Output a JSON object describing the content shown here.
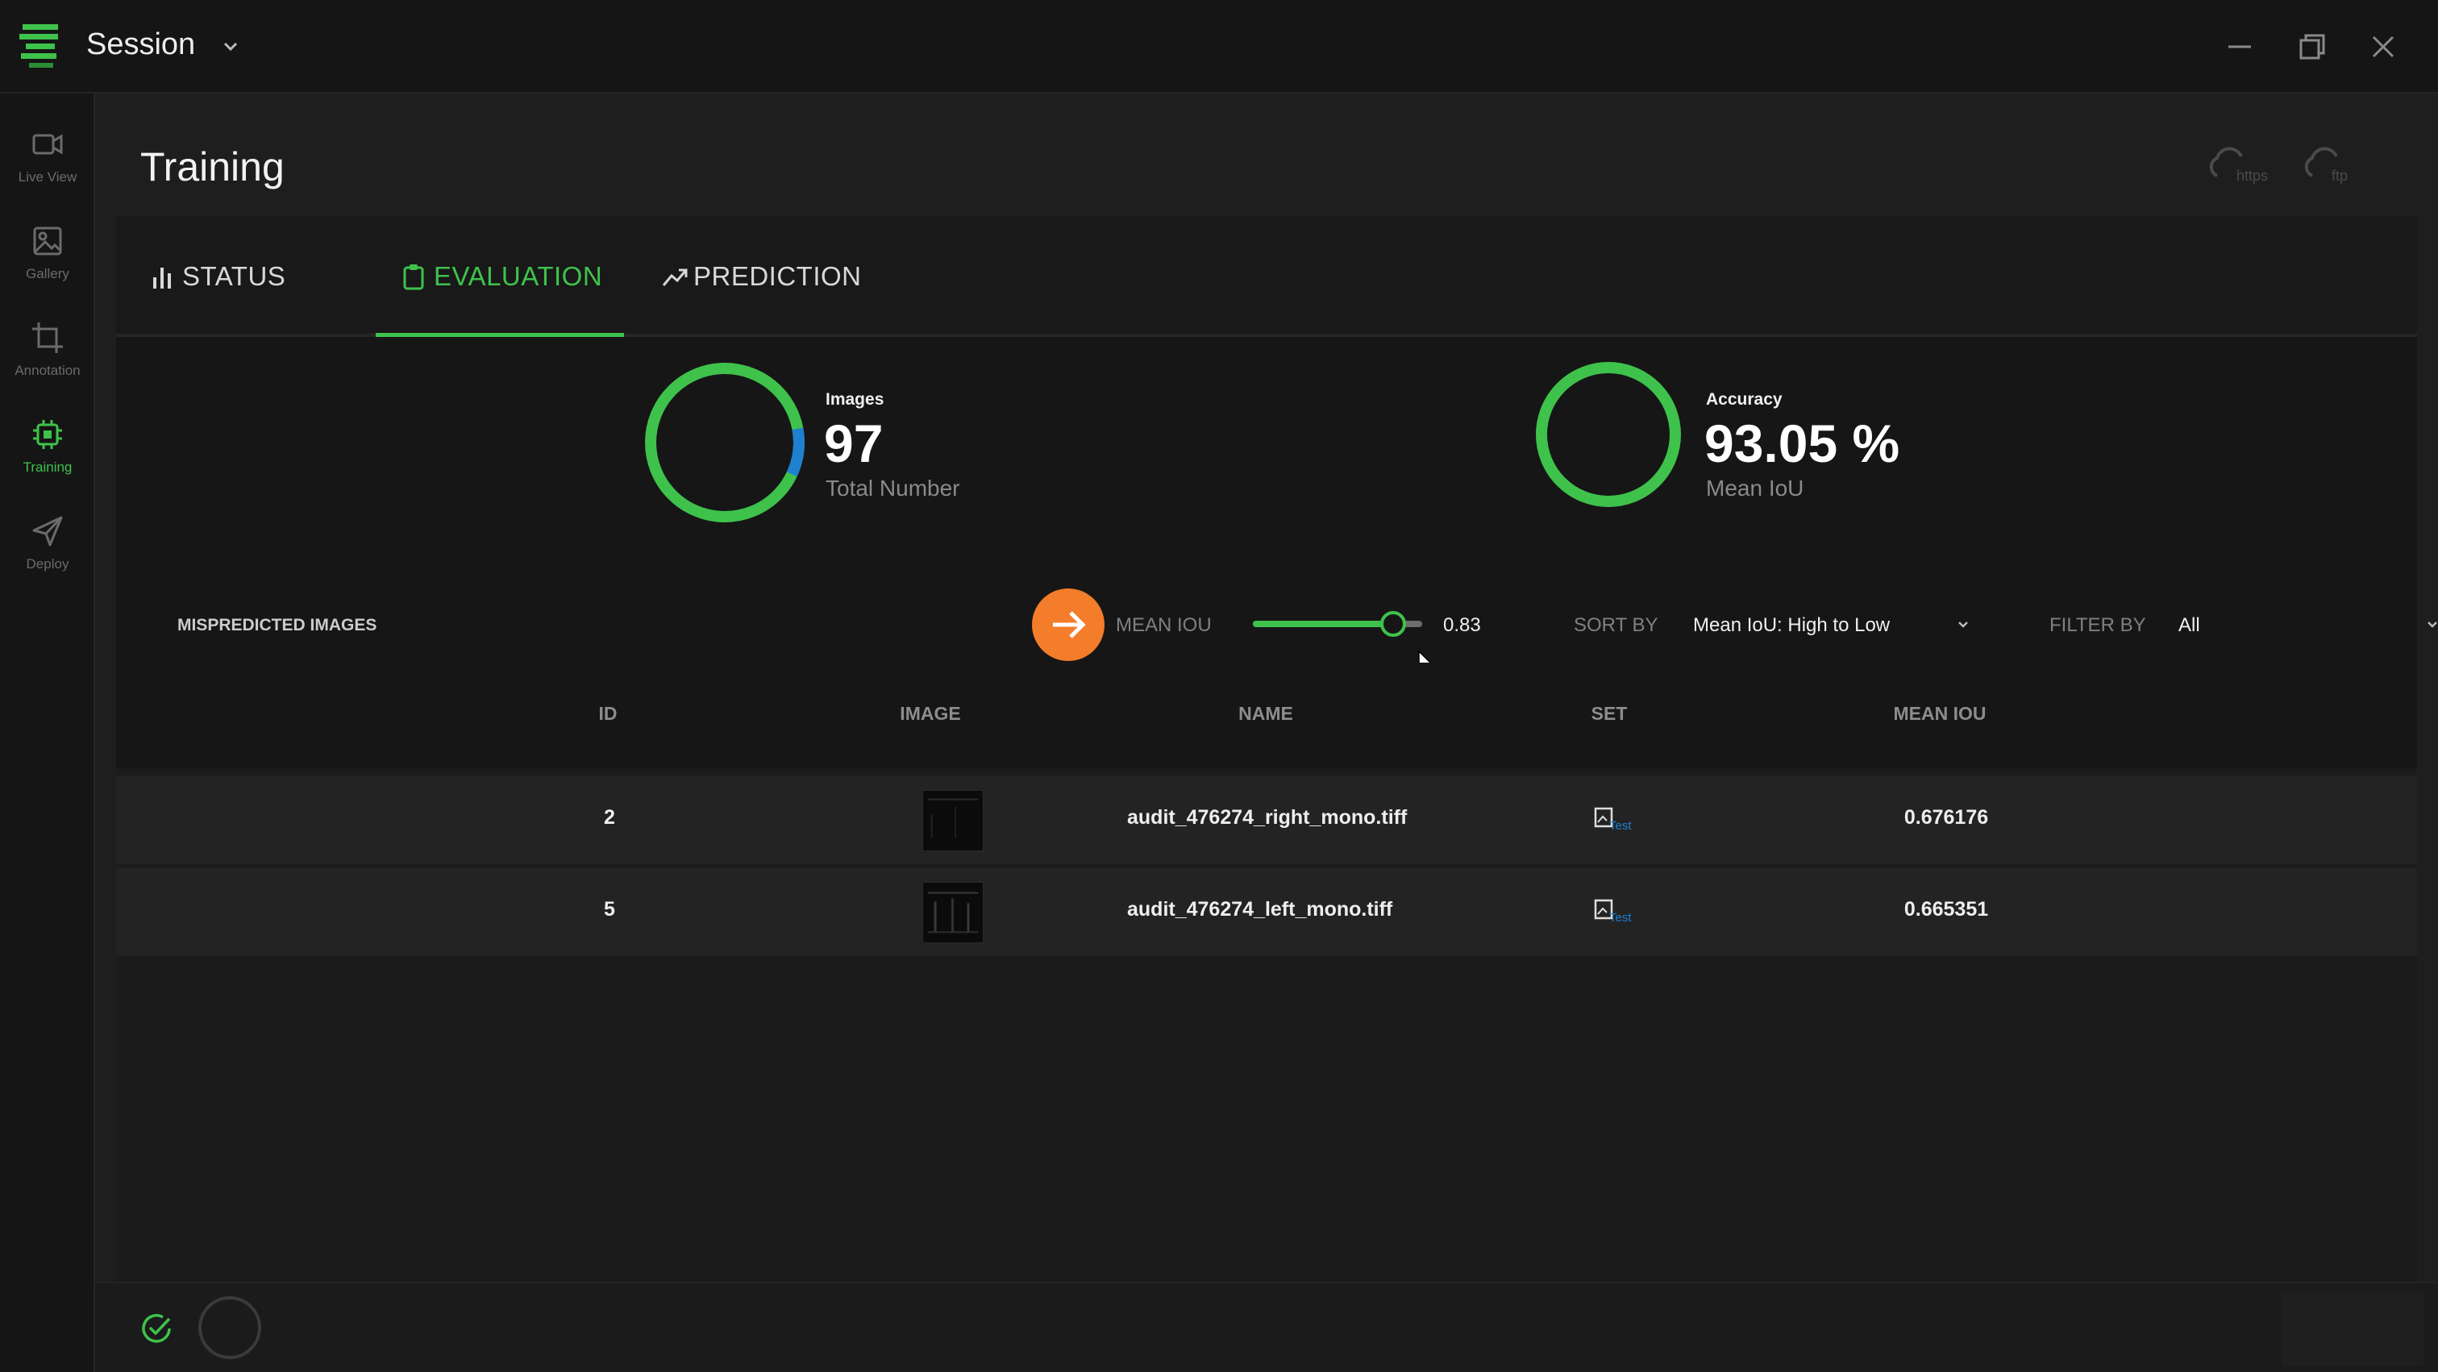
{
  "window": {
    "title": "Session"
  },
  "sidebar": {
    "items": [
      {
        "label": "Live View",
        "icon": "video-camera-icon"
      },
      {
        "label": "Gallery",
        "icon": "image-icon"
      },
      {
        "label": "Annotation",
        "icon": "crop-icon"
      },
      {
        "label": "Training",
        "icon": "chip-icon",
        "active": true
      },
      {
        "label": "Deploy",
        "icon": "send-icon"
      }
    ]
  },
  "page": {
    "title": "Training",
    "cloud_buttons": [
      {
        "label": "https",
        "icon": "cloud-icon"
      },
      {
        "label": "ftp",
        "icon": "cloud-icon"
      }
    ]
  },
  "tabs": [
    {
      "label": "STATUS",
      "icon": "bar-chart-icon"
    },
    {
      "label": "EVALUATION",
      "icon": "clipboard-icon",
      "active": true
    },
    {
      "label": "PREDICTION",
      "icon": "trend-up-icon"
    }
  ],
  "stats": {
    "images": {
      "label": "Images",
      "value": "97",
      "sub": "Total Number",
      "ring_fraction_secondary": 0.1
    },
    "accuracy": {
      "label": "Accuracy",
      "value": "93.05 %",
      "sub": "Mean IoU",
      "ring_fraction": 1.0
    }
  },
  "filters": {
    "section_title": "MISPREDICTED IMAGES",
    "mean_iou_label": "MEAN IOU",
    "mean_iou_value": "0.83",
    "mean_iou_fraction": 0.83,
    "sort_by_label": "SORT BY",
    "sort_by_value": "Mean IoU: High to Low",
    "filter_by_label": "FILTER BY",
    "filter_by_value": "All"
  },
  "table": {
    "columns": [
      "ID",
      "IMAGE",
      "NAME",
      "SET",
      "MEAN IOU"
    ],
    "rows": [
      {
        "id": "2",
        "name": "audit_476274_right_mono.tiff",
        "set": "Test",
        "mean_iou": "0.676176"
      },
      {
        "id": "5",
        "name": "audit_476274_left_mono.tiff",
        "set": "Test",
        "mean_iou": "0.665351"
      }
    ]
  },
  "colors": {
    "accent": "#3ec24b",
    "secondary": "#1f7fd1",
    "action": "#f37d2a",
    "background": "#1b1b1b"
  }
}
